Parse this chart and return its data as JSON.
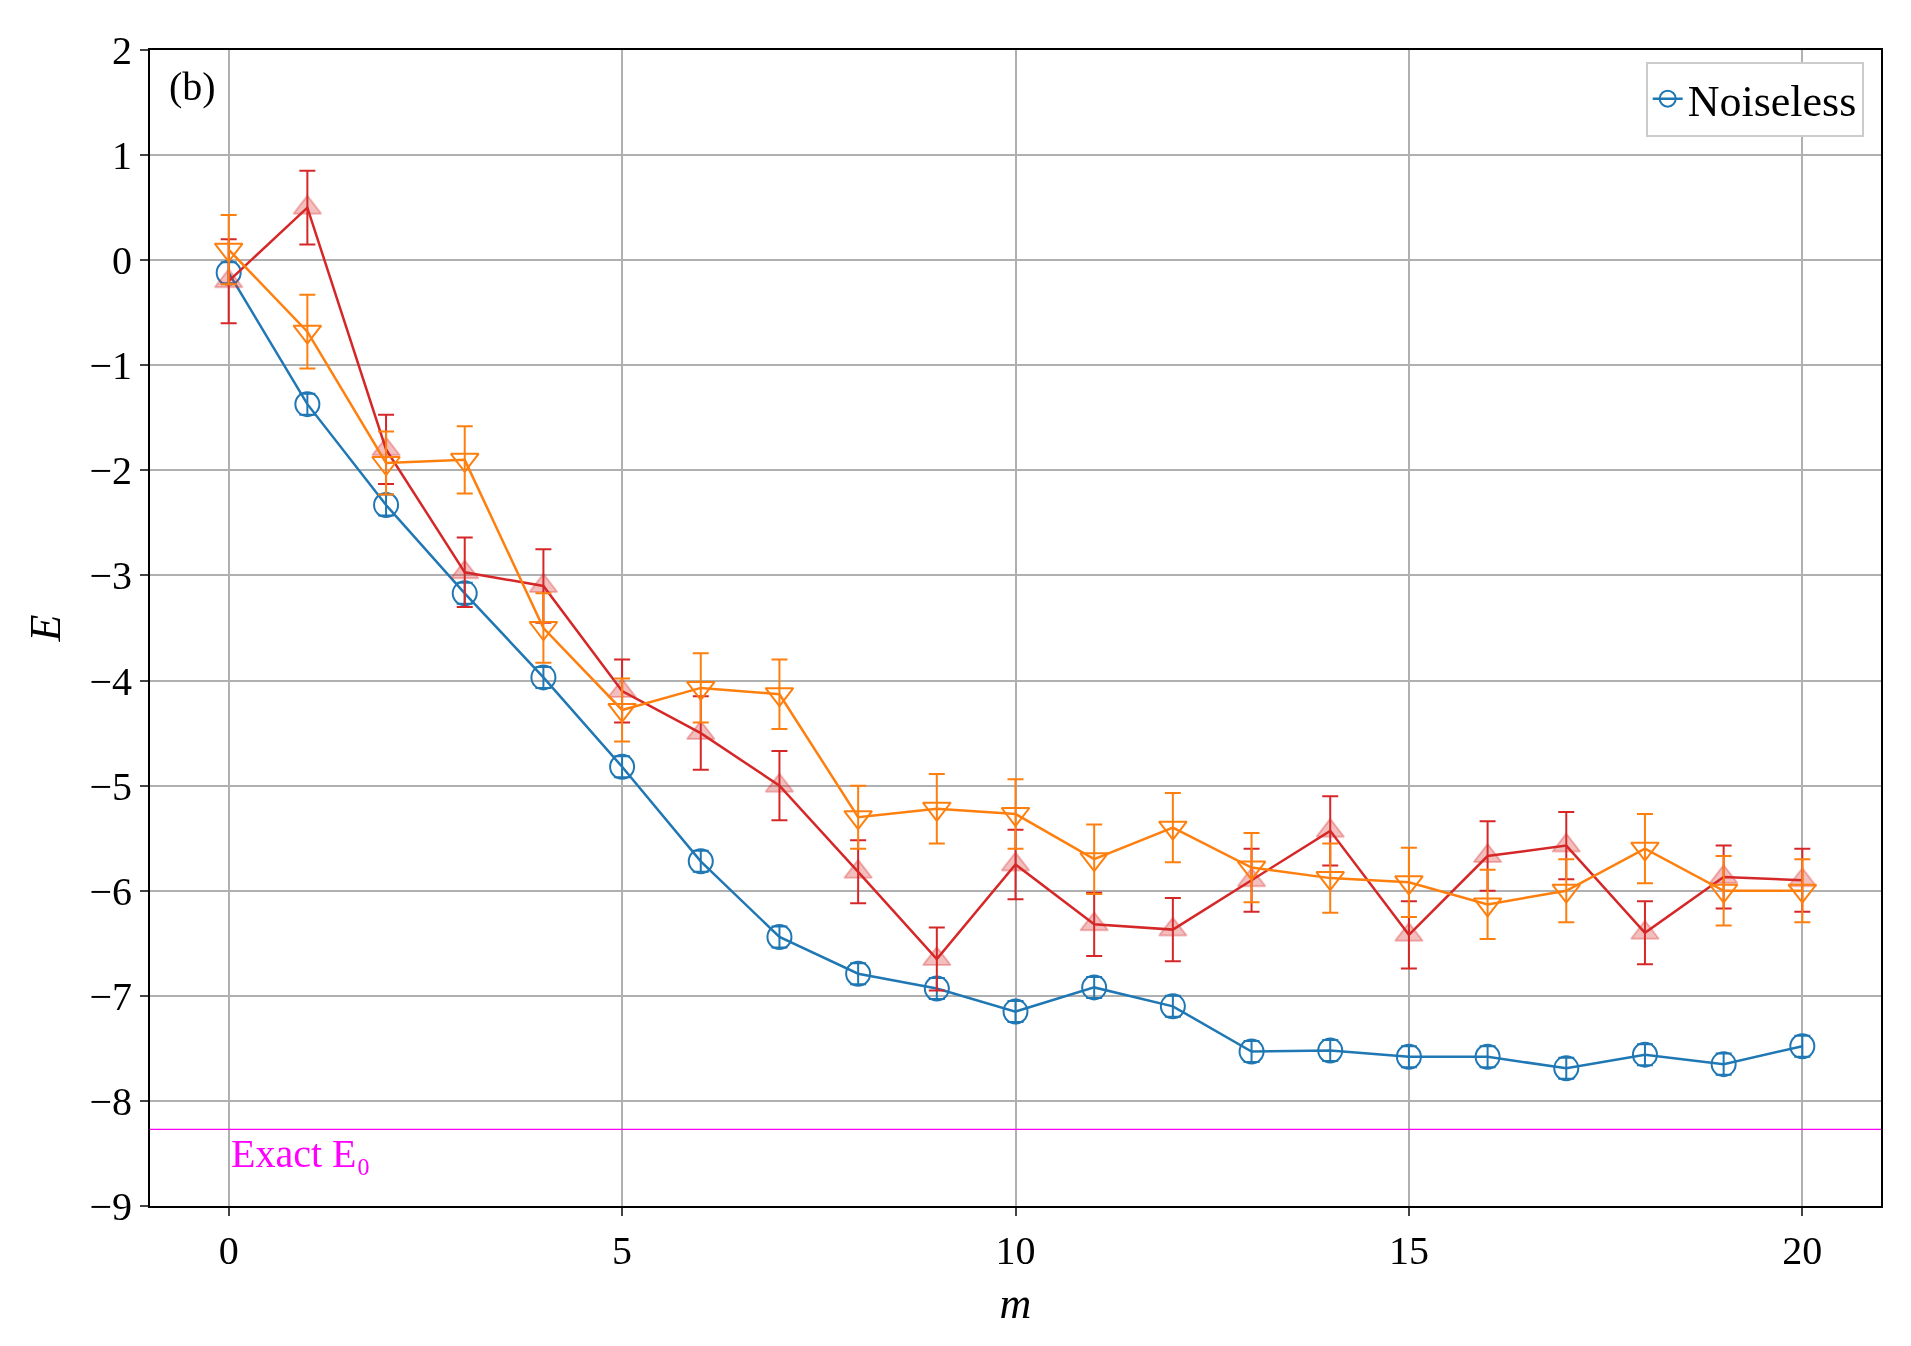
{
  "chart_data": {
    "type": "line",
    "xlabel": "m",
    "ylabel": "E",
    "x": [
      0,
      1,
      2,
      3,
      4,
      5,
      6,
      7,
      8,
      9,
      10,
      11,
      12,
      13,
      14,
      15,
      16,
      17,
      18,
      19,
      20
    ],
    "series": [
      {
        "name": "Noiseless",
        "color": "#1f77b4",
        "marker": "circle",
        "values": [
          -0.12,
          -1.37,
          -2.33,
          -3.17,
          -3.97,
          -4.82,
          -5.72,
          -6.44,
          -6.79,
          -6.93,
          -7.15,
          -6.92,
          -7.1,
          -7.53,
          -7.52,
          -7.58,
          -7.58,
          -7.69,
          -7.56,
          -7.65,
          -7.48
        ],
        "errors": [
          0.1,
          0.1,
          0.1,
          0.1,
          0.1,
          0.1,
          0.1,
          0.1,
          0.1,
          0.1,
          0.1,
          0.1,
          0.1,
          0.1,
          0.1,
          0.1,
          0.1,
          0.1,
          0.1,
          0.1,
          0.1
        ]
      },
      {
        "color": "#d62728",
        "marker": "triangle",
        "values": [
          -0.2,
          0.5,
          -1.8,
          -2.97,
          -3.1,
          -4.1,
          -4.5,
          -5.0,
          -5.82,
          -6.65,
          -5.75,
          -6.32,
          -6.37,
          -5.9,
          -5.43,
          -6.42,
          -5.67,
          -5.57,
          -6.4,
          -5.87,
          -5.9
        ],
        "errors": [
          0.4,
          0.35,
          0.33,
          0.33,
          0.35,
          0.3,
          0.35,
          0.33,
          0.3,
          0.3,
          0.33,
          0.3,
          0.3,
          0.3,
          0.33,
          0.32,
          0.33,
          0.32,
          0.3,
          0.3,
          0.3
        ]
      },
      {
        "color": "#ff7f0e",
        "marker": "triangle-down",
        "values": [
          0.1,
          -0.68,
          -1.93,
          -1.9,
          -3.5,
          -4.28,
          -4.07,
          -4.13,
          -5.3,
          -5.22,
          -5.27,
          -5.7,
          -5.4,
          -5.78,
          -5.88,
          -5.92,
          -6.13,
          -6.0,
          -5.6,
          -6.0,
          -6.0
        ],
        "errors": [
          0.33,
          0.35,
          0.3,
          0.32,
          0.33,
          0.3,
          0.33,
          0.33,
          0.3,
          0.33,
          0.33,
          0.33,
          0.33,
          0.33,
          0.33,
          0.33,
          0.33,
          0.3,
          0.33,
          0.33,
          0.3
        ]
      }
    ],
    "xlim": [
      -1,
      21
    ],
    "xticks": [
      0,
      5,
      10,
      15,
      20
    ],
    "ylim": [
      -9,
      2
    ],
    "yticks": [
      -9,
      -8,
      -7,
      -6,
      -5,
      -4,
      -3,
      -2,
      -1,
      0,
      1,
      2
    ],
    "ref_lines": [
      {
        "axis": "y",
        "value": -8.27,
        "label": "Exact E₀",
        "color": "#ff00ff"
      }
    ],
    "annotations": [
      "(b)"
    ],
    "grid": true,
    "legend": "top right",
    "line_style": "solid"
  }
}
